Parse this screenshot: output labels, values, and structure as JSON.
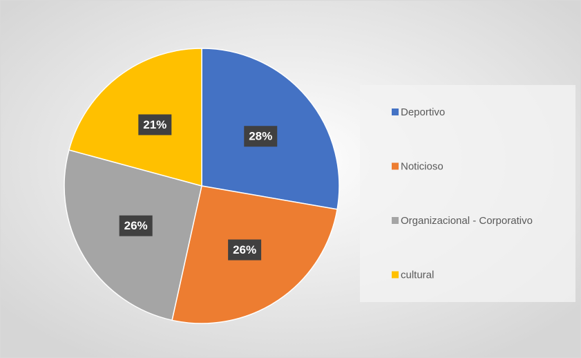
{
  "chart_data": {
    "type": "pie",
    "categories": [
      "Deportivo",
      "Noticioso",
      "Organizacional - Corporativo",
      "cultural"
    ],
    "values": [
      28,
      26,
      26,
      21
    ],
    "value_labels": [
      "28%",
      "26%",
      "26%",
      "21%"
    ],
    "colors": [
      "#4472c4",
      "#ed7d31",
      "#a5a5a5",
      "#ffc000"
    ],
    "legend": "right"
  }
}
